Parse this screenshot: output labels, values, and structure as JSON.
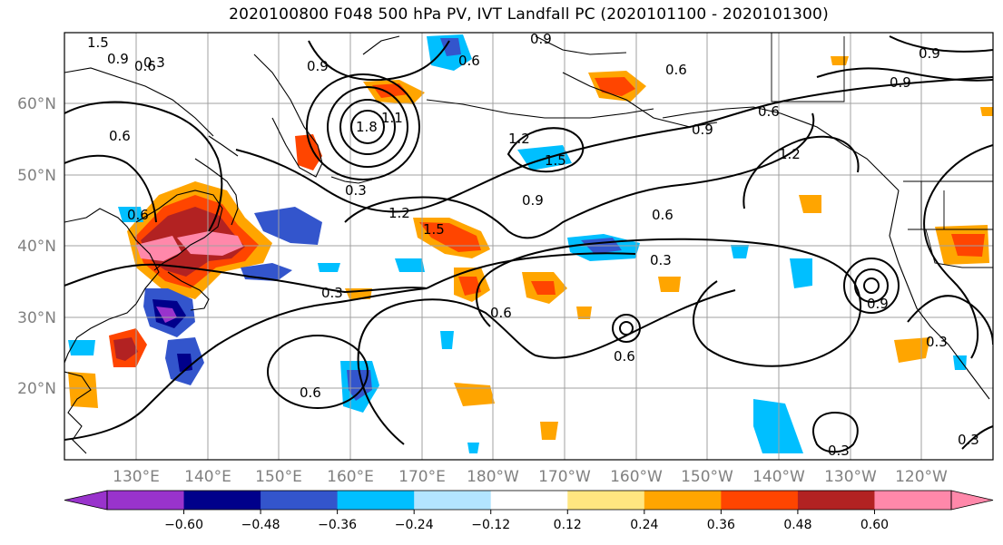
{
  "title": "2020100800 F048 500 hPa PV, IVT Landfall PC (2020101100 - 2020101300)",
  "latitude_labels": [
    "60°N",
    "50°N",
    "40°N",
    "30°N",
    "20°N"
  ],
  "longitude_labels": [
    "130°E",
    "140°E",
    "150°E",
    "160°E",
    "170°E",
    "180°W",
    "170°W",
    "160°W",
    "150°W",
    "140°W",
    "130°W",
    "120°W"
  ],
  "colorbar": {
    "colors": [
      "#9933cc",
      "#00008b",
      "#3355cc",
      "#00bfff",
      "#b3e5ff",
      "#ffffff",
      "#ffe680",
      "#ffa500",
      "#ff4500",
      "#b22222",
      "#ff88aa"
    ],
    "tick_labels": [
      "−0.60",
      "−0.48",
      "−0.36",
      "−0.24",
      "−0.12",
      "0.12",
      "0.24",
      "0.36",
      "0.48",
      "0.60"
    ]
  },
  "contour_labels": [
    "1.5",
    "0.9",
    "0.6",
    "0.3",
    "0.9",
    "0.6",
    "0.9",
    "0.6",
    "0.9",
    "1.2",
    "1.5",
    "1.2",
    "0.9",
    "0.6",
    "0.6",
    "1.2",
    "1.5",
    "0.3",
    "0.9",
    "0.6",
    "0.3",
    "0.3",
    "0.6",
    "0.6",
    "0.6",
    "0.6",
    "0.9",
    "0.3",
    "0.3",
    "0.3",
    "1.8",
    "1.1",
    "0.9"
  ]
}
